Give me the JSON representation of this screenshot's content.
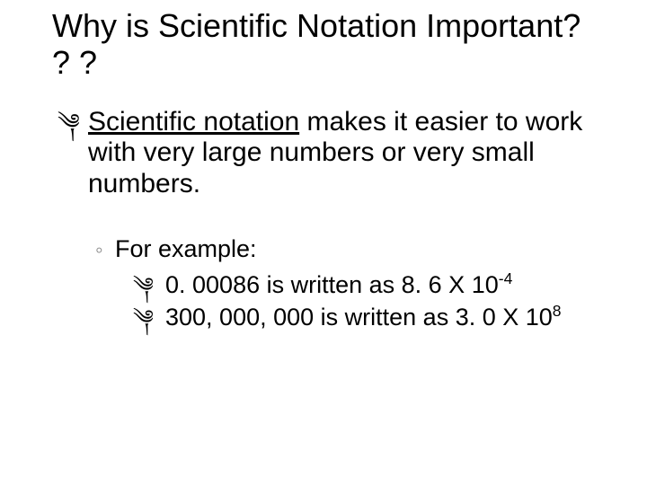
{
  "slide": {
    "title": "Why is Scientific Notation Important? ? ?",
    "main": {
      "underlined": "Scientific notation",
      "rest": " makes it easier to work with very large numbers or very small numbers."
    },
    "example_label": "For example:",
    "ex1": {
      "prefix": "0. 00086 is written as 8. 6 X 10",
      "exp": "-4"
    },
    "ex2": {
      "prefix": "300, 000, 000 is written as 3. 0 X 10",
      "exp": "8"
    },
    "bullet_main": "༆",
    "bullet_sub": "◦",
    "bullet_subsub": "༆"
  },
  "colors": {
    "text": "#000000",
    "sub_bullet": "#808080",
    "background": "#ffffff"
  },
  "typography": {
    "title_fontsize": 36,
    "body_fontsize": 30,
    "sub_fontsize": 27,
    "title_family": "Arial",
    "body_family": "Arial"
  }
}
